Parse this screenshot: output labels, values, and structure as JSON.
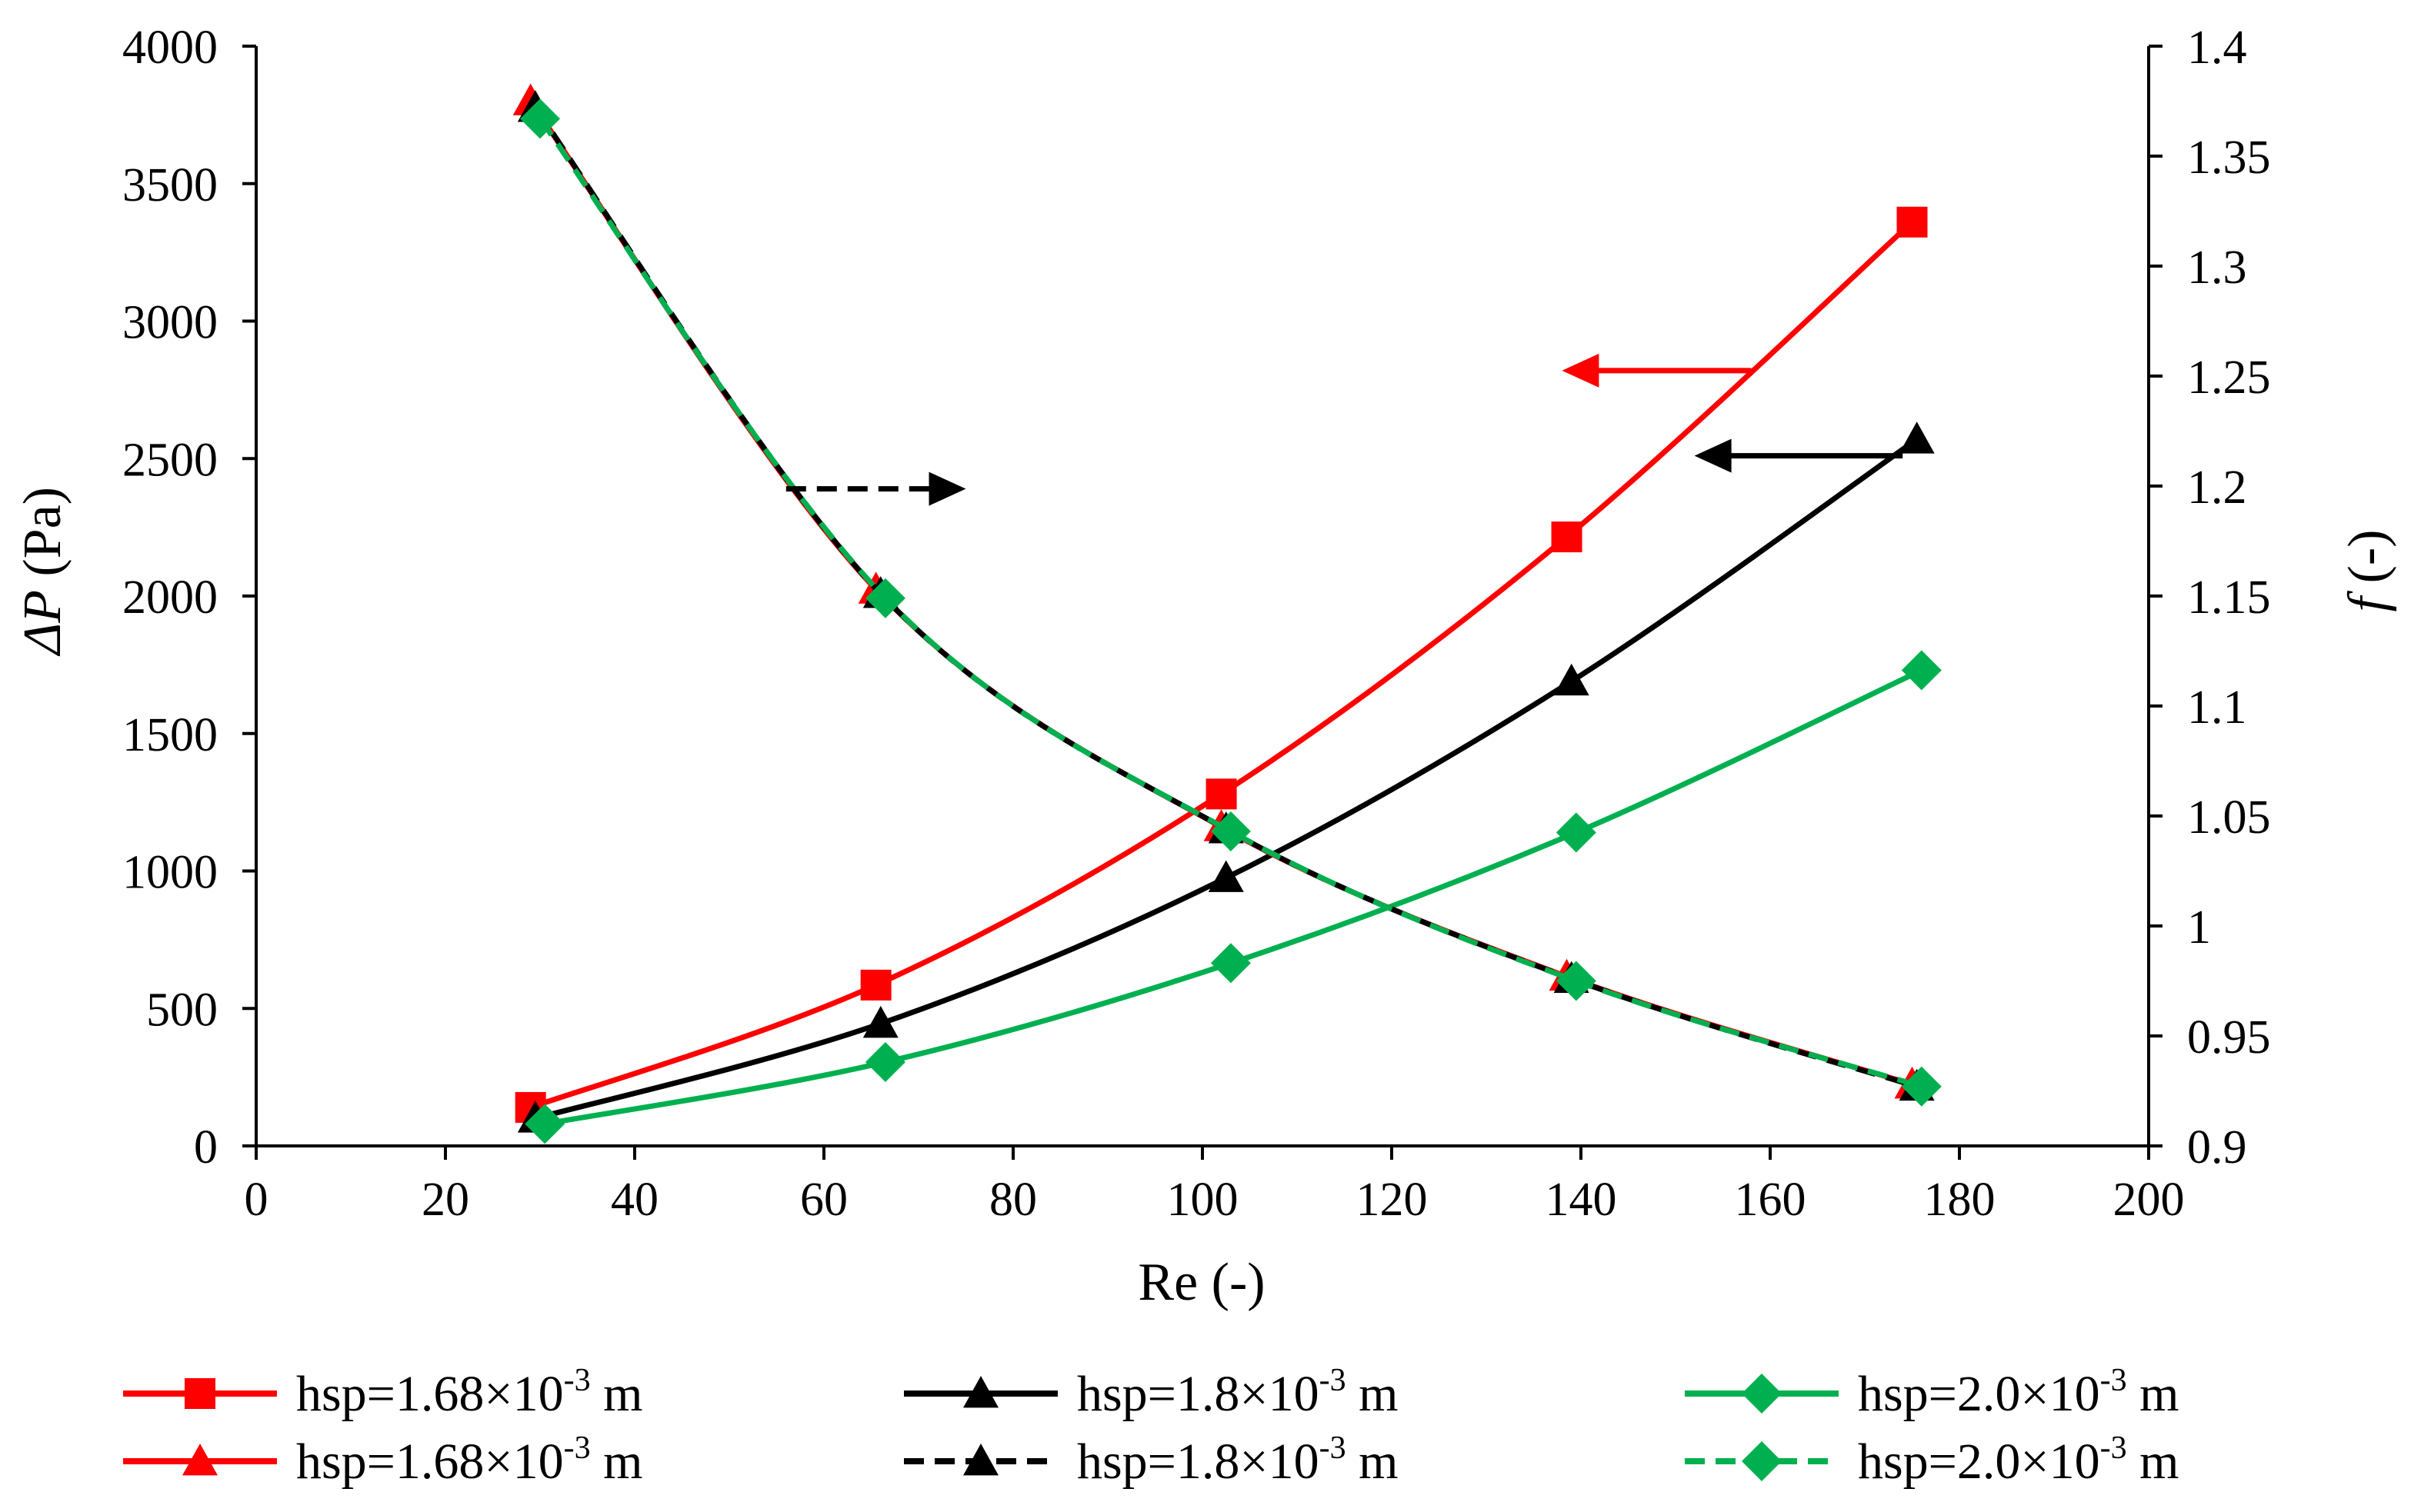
{
  "chart_data": {
    "type": "line",
    "x_axis": {
      "label": "Re (-)",
      "range": [
        0,
        200
      ],
      "ticks": [
        0,
        20,
        40,
        60,
        80,
        100,
        120,
        140,
        160,
        180,
        200
      ]
    },
    "y_axis_left": {
      "label_symbol": "ΔP",
      "label_unit": " (Pa)",
      "range": [
        0,
        4000
      ],
      "ticks": [
        0,
        500,
        1000,
        1500,
        2000,
        2500,
        3000,
        3500,
        4000
      ],
      "tick_labels": [
        "0",
        "500",
        "1000",
        "1500",
        "2000",
        "2500",
        "3000",
        "3500",
        "4000"
      ]
    },
    "y_axis_right": {
      "label_symbol": "f",
      "label_unit": " (-)",
      "range": [
        0.9,
        1.4
      ],
      "ticks": [
        0.9,
        0.95,
        1.0,
        1.05,
        1.1,
        1.15,
        1.2,
        1.25,
        1.3,
        1.35,
        1.4
      ],
      "tick_labels": [
        "0.9",
        "0.95",
        "1",
        "1.05",
        "1.1",
        "1.15",
        "1.2",
        "1.25",
        "1.3",
        "1.35",
        "1.4"
      ]
    },
    "series": [
      {
        "name": "hsp=1.68×10-3 m",
        "axis": "left",
        "color": "#ff0000",
        "dash": "solid",
        "marker": "square",
        "x": [
          29,
          65.5,
          102,
          138.5,
          175
        ],
        "y": [
          140,
          585,
          1280,
          2215,
          3360
        ]
      },
      {
        "name": "hsp=1.8×10-3 m",
        "axis": "left",
        "color": "#000000",
        "dash": "solid",
        "marker": "triangle",
        "x": [
          29.5,
          66,
          102.5,
          139,
          175.5
        ],
        "y": [
          100,
          445,
          975,
          1690,
          2570
        ]
      },
      {
        "name": "hsp=2.0×10-3 m",
        "axis": "left",
        "color": "#00b050",
        "dash": "solid",
        "marker": "diamond",
        "x": [
          30.5,
          66.5,
          103,
          139.5,
          176
        ],
        "y": [
          80,
          305,
          665,
          1140,
          1730
        ]
      },
      {
        "name": "hsp=1.68×10-3 m",
        "axis": "right",
        "color": "#ff0000",
        "dash": "solid",
        "marker": "triangle",
        "x": [
          29,
          65.5,
          102,
          138.5,
          175
        ],
        "y": [
          1.375,
          1.153,
          1.045,
          0.977,
          0.928
        ]
      },
      {
        "name": "hsp=1.8×10-3 m",
        "axis": "right",
        "color": "#000000",
        "dash": "dashed",
        "marker": "triangle",
        "x": [
          29.5,
          66,
          102.5,
          139,
          175.5
        ],
        "y": [
          1.372,
          1.151,
          1.044,
          0.976,
          0.927
        ]
      },
      {
        "name": "hsp=2.0×10-3 m",
        "axis": "right",
        "color": "#00b050",
        "dash": "dashed",
        "marker": "diamond",
        "x": [
          30,
          66.5,
          103,
          139.5,
          176
        ],
        "y": [
          1.367,
          1.149,
          1.043,
          0.975,
          0.927
        ]
      }
    ],
    "annotations": [
      {
        "type": "arrow",
        "color": "#ff0000",
        "dash": "solid",
        "direction": "left",
        "axis": "left",
        "from": [
          158,
          2820
        ],
        "to": [
          138,
          2820
        ]
      },
      {
        "type": "arrow",
        "color": "#000000",
        "dash": "solid",
        "direction": "left",
        "axis": "left",
        "from": [
          174,
          2510
        ],
        "to": [
          152,
          2510
        ]
      },
      {
        "type": "arrow",
        "color": "#000000",
        "dash": "dashed",
        "direction": "right",
        "axis": "left",
        "from": [
          56,
          2390
        ],
        "to": [
          75,
          2390
        ]
      }
    ],
    "legend": {
      "position": "bottom",
      "columns": 3,
      "entries": [
        {
          "prefix": "hsp=1.68×10",
          "sup": "-3",
          "suffix": " m",
          "color": "#ff0000",
          "dash": "solid",
          "marker": "square"
        },
        {
          "prefix": "hsp=1.8×10",
          "sup": "-3",
          "suffix": " m",
          "color": "#000000",
          "dash": "solid",
          "marker": "triangle"
        },
        {
          "prefix": "hsp=2.0×10",
          "sup": "-3",
          "suffix": " m",
          "color": "#00b050",
          "dash": "solid",
          "marker": "diamond"
        },
        {
          "prefix": "hsp=1.68×10",
          "sup": "-3",
          "suffix": " m",
          "color": "#ff0000",
          "dash": "solid",
          "marker": "triangle"
        },
        {
          "prefix": "hsp=1.8×10",
          "sup": "-3",
          "suffix": " m",
          "color": "#000000",
          "dash": "dashed",
          "marker": "triangle"
        },
        {
          "prefix": "hsp=2.0×10",
          "sup": "-3",
          "suffix": " m",
          "color": "#00b050",
          "dash": "dashed",
          "marker": "diamond"
        }
      ]
    }
  }
}
